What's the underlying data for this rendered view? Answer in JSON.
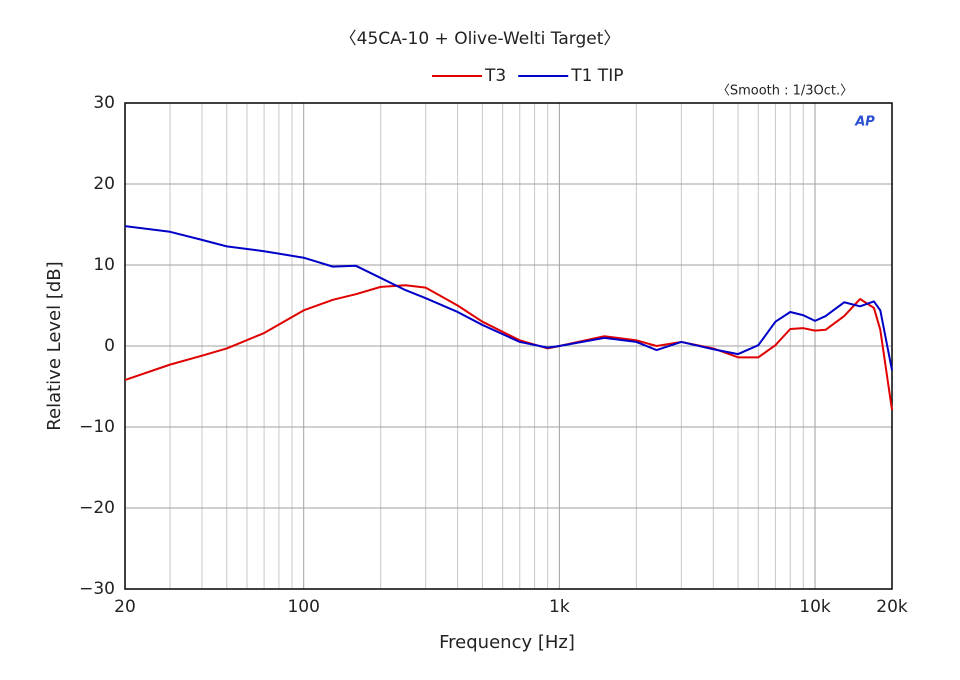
{
  "chart_data": {
    "type": "line",
    "title": "〈45CA-10 + Olive-Welti Target〉",
    "annotation": "〈Smooth : 1/3Oct.〉",
    "logo": "AP",
    "xlabel": "Frequency [Hz]",
    "ylabel": "Relative Level [dB]",
    "xscale": "log",
    "xlim": [
      20,
      20000
    ],
    "ylim": [
      -30,
      30
    ],
    "xticks": [
      20,
      100,
      {
        "value": 1000,
        "label": "1k"
      },
      {
        "value": 10000,
        "label": "10k"
      },
      {
        "value": 20000,
        "label": "20k"
      }
    ],
    "xminorticks": [
      30,
      40,
      50,
      60,
      70,
      80,
      90,
      200,
      300,
      400,
      500,
      600,
      700,
      800,
      900,
      2000,
      3000,
      4000,
      5000,
      6000,
      7000,
      8000,
      9000
    ],
    "yticks": [
      {
        "value": -30,
        "label": "−30"
      },
      {
        "value": -20,
        "label": "−20"
      },
      {
        "value": -10,
        "label": "−10"
      },
      0,
      10,
      20,
      30
    ],
    "grid": true,
    "legend": "top",
    "x": [
      20,
      30,
      40,
      50,
      70,
      100,
      130,
      160,
      200,
      250,
      300,
      400,
      500,
      700,
      900,
      1000,
      1500,
      2000,
      2400,
      3000,
      4000,
      5000,
      6000,
      7000,
      8000,
      9000,
      10000,
      11000,
      13000,
      15000,
      17000,
      18000,
      20000
    ],
    "series": [
      {
        "name": "T3",
        "color": "#e00000",
        "values": [
          -4.2,
          -2.3,
          -1.2,
          -0.3,
          1.6,
          4.4,
          5.7,
          6.4,
          7.3,
          7.5,
          7.2,
          5,
          3,
          0.7,
          -0.3,
          0,
          1.2,
          0.7,
          0,
          0.5,
          -0.3,
          -1.4,
          -1.4,
          0.1,
          2.1,
          2.2,
          1.9,
          2,
          3.7,
          5.8,
          4.7,
          2,
          -7.9
        ]
      },
      {
        "name": "T1 TIP",
        "color": "#0000c8",
        "values": [
          14.8,
          14.1,
          13.1,
          12.3,
          11.7,
          10.9,
          9.8,
          9.9,
          8.4,
          6.9,
          5.9,
          4.2,
          2.6,
          0.5,
          -0.2,
          0,
          1,
          0.5,
          -0.5,
          0.5,
          -0.4,
          -1,
          0.1,
          3,
          4.2,
          3.8,
          3.1,
          3.7,
          5.4,
          4.9,
          5.5,
          4.4,
          -3
        ]
      }
    ]
  }
}
